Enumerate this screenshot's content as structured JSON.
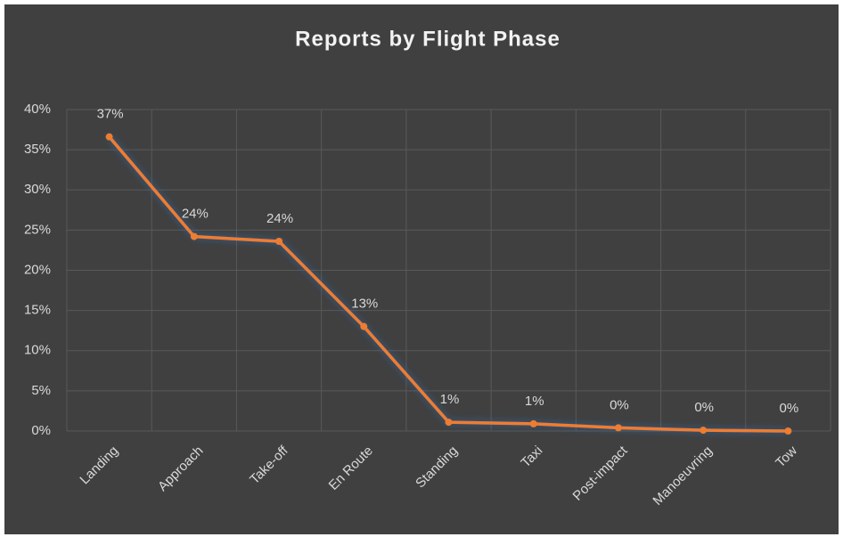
{
  "chart_data": {
    "type": "line",
    "title": "Reports by Flight Phase",
    "categories": [
      "Landing",
      "Approach",
      "Take-off",
      "En Route",
      "Standing",
      "Taxi",
      "Post-impact",
      "Manoeuvring",
      "Tow"
    ],
    "values": [
      36.6,
      24.2,
      23.6,
      13.0,
      1.1,
      0.9,
      0.4,
      0.1,
      0.0
    ],
    "value_labels": [
      "37%",
      "24%",
      "24%",
      "13%",
      "1%",
      "1%",
      "0%",
      "0%",
      "0%"
    ],
    "color": "#ed7d31",
    "ylim": [
      0,
      40
    ],
    "yticks": [
      {
        "value": 0,
        "label": "0%"
      },
      {
        "value": 5,
        "label": "5%"
      },
      {
        "value": 10,
        "label": "10%"
      },
      {
        "value": 15,
        "label": "15%"
      },
      {
        "value": 20,
        "label": "20%"
      },
      {
        "value": 25,
        "label": "25%"
      },
      {
        "value": 30,
        "label": "30%"
      },
      {
        "value": 35,
        "label": "35%"
      },
      {
        "value": 40,
        "label": "40%"
      }
    ],
    "grid": true
  }
}
